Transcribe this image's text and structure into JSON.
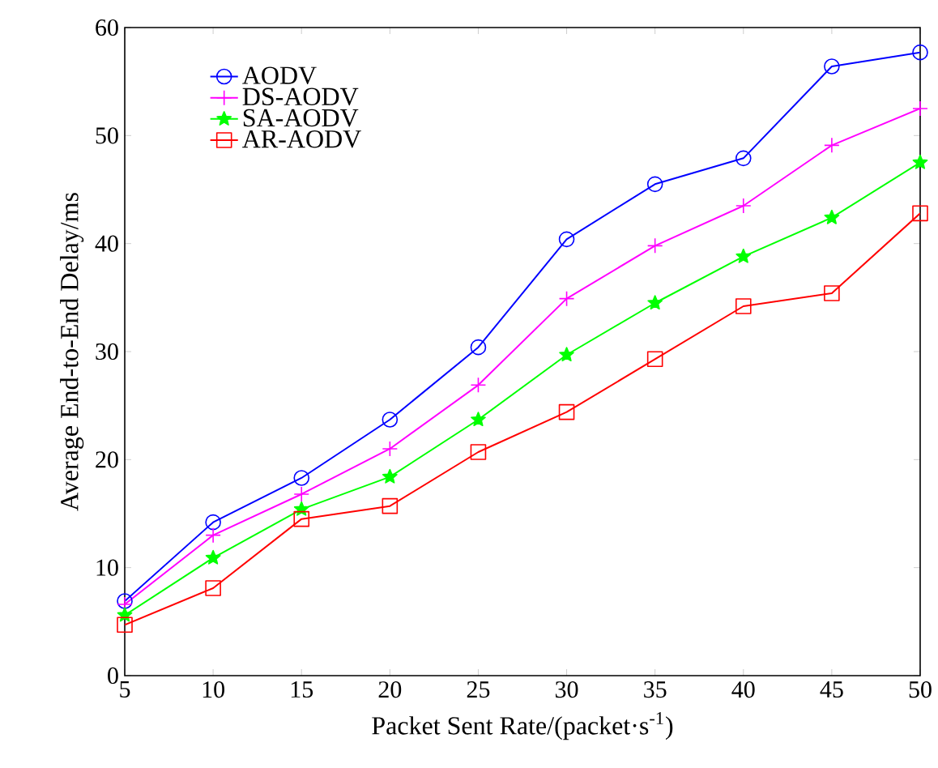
{
  "chart_data": {
    "type": "line",
    "xlabel": "Packet Sent Rate/(packet·s$^{-1}$)",
    "ylabel": "Average End-to-End Delay/ms",
    "x": [
      5,
      10,
      15,
      20,
      25,
      30,
      35,
      40,
      45,
      50
    ],
    "series": [
      {
        "name": "AODV",
        "color": "#0000ff",
        "marker": "circle",
        "values": [
          6.9,
          14.2,
          18.3,
          23.7,
          30.4,
          40.4,
          45.5,
          47.9,
          56.4,
          57.7
        ]
      },
      {
        "name": "DS-AODV",
        "color": "#ff00ff",
        "marker": "cross",
        "values": [
          6.6,
          13.0,
          16.8,
          21.0,
          26.9,
          34.9,
          39.8,
          43.5,
          49.1,
          52.5
        ]
      },
      {
        "name": "SA-AODV",
        "color": "#00ff00",
        "marker": "star",
        "values": [
          5.6,
          10.9,
          15.4,
          18.4,
          23.7,
          29.7,
          34.5,
          38.8,
          42.4,
          47.5
        ]
      },
      {
        "name": "AR-AODV",
        "color": "#ff0000",
        "marker": "square",
        "values": [
          4.7,
          8.1,
          14.5,
          15.7,
          20.7,
          24.4,
          29.3,
          34.2,
          35.4,
          42.8
        ]
      }
    ],
    "xlim": [
      5,
      50
    ],
    "xticks": [
      5,
      10,
      15,
      20,
      25,
      30,
      35,
      40,
      45,
      50
    ],
    "ylim": [
      0,
      60
    ],
    "yticks": [
      0,
      10,
      20,
      30,
      40,
      50,
      60
    ],
    "legend": "top left",
    "line_style": "solid"
  }
}
